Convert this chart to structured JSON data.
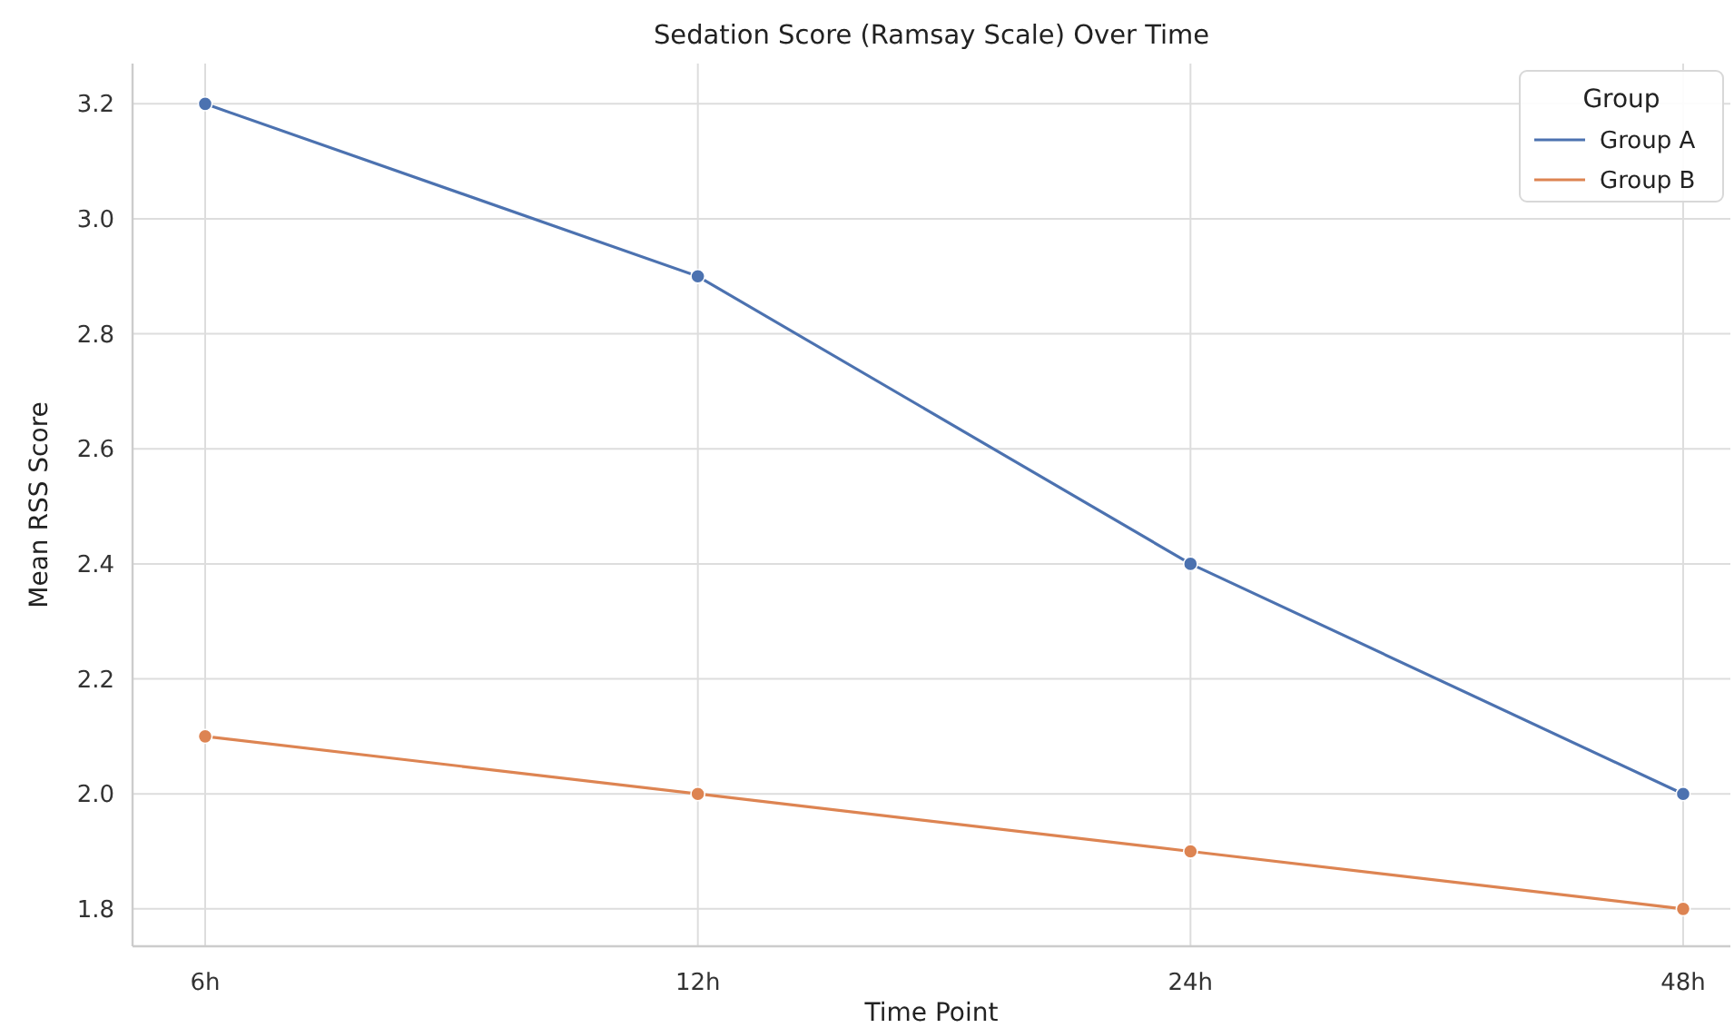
{
  "chart_data": {
    "type": "line",
    "title": "Sedation Score (Ramsay Scale) Over Time",
    "xlabel": "Time Point",
    "ylabel": "Mean RSS Score",
    "legend_title": "Group",
    "categories": [
      "6h",
      "12h",
      "24h",
      "48h"
    ],
    "series": [
      {
        "name": "Group A",
        "color": "#4c72b0",
        "values": [
          3.2,
          2.9,
          2.4,
          2.0
        ]
      },
      {
        "name": "Group B",
        "color": "#dd8452",
        "values": [
          2.1,
          2.0,
          1.9,
          1.8
        ]
      }
    ],
    "ylim": [
      1.735,
      3.27
    ],
    "yticks": [
      {
        "value": 1.8,
        "label": "1.8"
      },
      {
        "value": 2.0,
        "label": "2.0"
      },
      {
        "value": 2.2,
        "label": "2.2"
      },
      {
        "value": 2.4,
        "label": "2.4"
      },
      {
        "value": 2.6,
        "label": "2.6"
      },
      {
        "value": 2.8,
        "label": "2.8"
      },
      {
        "value": 3.0,
        "label": "3.0"
      },
      {
        "value": 3.2,
        "label": "3.2"
      }
    ],
    "grid": true,
    "legend": "top right",
    "marker": "circle",
    "line_style": "solid"
  }
}
